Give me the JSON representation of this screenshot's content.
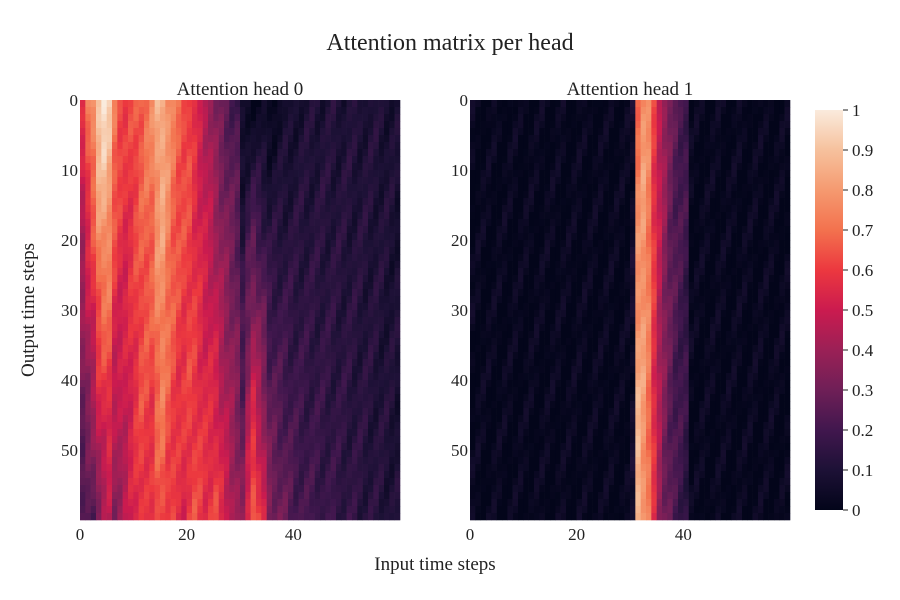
{
  "figure": {
    "title": "Attention matrix per head",
    "xlabel": "Input time steps",
    "ylabel": "Output time steps"
  },
  "chart_data": [
    {
      "type": "heatmap",
      "title": "Attention head 0",
      "rows": 60,
      "cols": 60,
      "x_ticks": [
        0,
        20,
        40
      ],
      "y_ticks": [
        0,
        10,
        20,
        30,
        40,
        50
      ],
      "xlim": [
        0,
        60
      ],
      "ylim": [
        60,
        0
      ],
      "description_of_values": "rows = output time steps, cols = input time steps",
      "column_profile": {
        "breakpoints": [
          0,
          1,
          2,
          3,
          4,
          5,
          6,
          7,
          8,
          9,
          10,
          11,
          12,
          13,
          14,
          15,
          16,
          17,
          18,
          19,
          20,
          21,
          22,
          23,
          24,
          25,
          26,
          27,
          28,
          29,
          30,
          31,
          32,
          33,
          34,
          35,
          40,
          45,
          50,
          55,
          59
        ],
        "top_rows": [
          0.55,
          0.7,
          0.8,
          0.95,
          0.98,
          0.92,
          0.75,
          0.65,
          0.6,
          0.62,
          0.65,
          0.68,
          0.72,
          0.75,
          0.85,
          0.88,
          0.8,
          0.72,
          0.68,
          0.65,
          0.62,
          0.55,
          0.5,
          0.45,
          0.4,
          0.32,
          0.28,
          0.25,
          0.22,
          0.2,
          0.02,
          0.02,
          0.02,
          0.02,
          0.02,
          0.02,
          0.08,
          0.1,
          0.1,
          0.1,
          0.08
        ],
        "bottom_rows": [
          0.2,
          0.22,
          0.25,
          0.35,
          0.4,
          0.45,
          0.35,
          0.4,
          0.45,
          0.5,
          0.55,
          0.6,
          0.58,
          0.55,
          0.62,
          0.65,
          0.6,
          0.58,
          0.55,
          0.55,
          0.6,
          0.62,
          0.6,
          0.58,
          0.6,
          0.62,
          0.55,
          0.5,
          0.45,
          0.4,
          0.35,
          0.55,
          0.7,
          0.6,
          0.5,
          0.35,
          0.22,
          0.18,
          0.15,
          0.12,
          0.1
        ]
      }
    },
    {
      "type": "heatmap",
      "title": "Attention head 1",
      "rows": 60,
      "cols": 60,
      "x_ticks": [
        0,
        20,
        40
      ],
      "y_ticks": [
        0,
        10,
        20,
        30,
        40,
        50
      ],
      "xlim": [
        0,
        60
      ],
      "ylim": [
        60,
        0
      ],
      "column_profile": {
        "breakpoints": [
          0,
          29,
          30,
          31,
          32,
          33,
          34,
          35,
          36,
          37,
          38,
          39,
          40,
          41,
          59
        ],
        "top_rows": [
          0.01,
          0.01,
          0.05,
          0.7,
          0.8,
          0.75,
          0.6,
          0.5,
          0.4,
          0.3,
          0.25,
          0.22,
          0.2,
          0.01,
          0.01
        ],
        "bottom_rows": [
          0.01,
          0.01,
          0.05,
          0.9,
          0.8,
          0.7,
          0.55,
          0.4,
          0.3,
          0.25,
          0.2,
          0.18,
          0.15,
          0.01,
          0.01
        ]
      }
    }
  ],
  "colorbar": {
    "colormap": "rocket",
    "range": [
      0,
      1
    ],
    "ticks": [
      "0",
      "0.1",
      "0.2",
      "0.3",
      "0.4",
      "0.5",
      "0.6",
      "0.7",
      "0.8",
      "0.9",
      "1"
    ]
  }
}
